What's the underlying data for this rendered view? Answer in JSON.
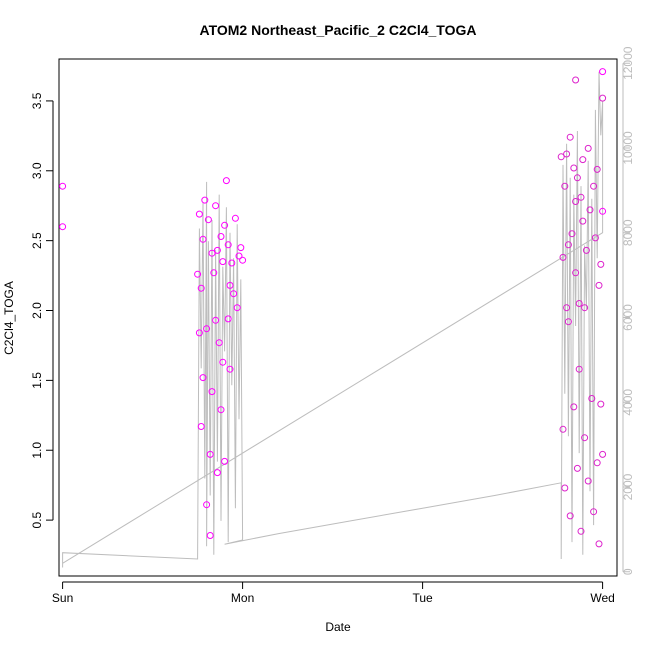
{
  "chart_data": {
    "type": "scatter",
    "title": "ATOM2 Northeast_Pacific_2 C2Cl4_TOGA",
    "xlabel": "Date",
    "ylabel": "C2Cl4_TOGA",
    "xlim": [
      -0.02,
      3.08
    ],
    "ylim": [
      0.1,
      3.8
    ],
    "y2lim": [
      -100,
      12100
    ],
    "x_ticks": [
      {
        "value": 0,
        "label": "Sun"
      },
      {
        "value": 1,
        "label": "Mon"
      },
      {
        "value": 2,
        "label": "Tue"
      },
      {
        "value": 3,
        "label": "Wed"
      }
    ],
    "y_ticks": [
      {
        "value": 0.5,
        "label": "0.5"
      },
      {
        "value": 1.0,
        "label": "1.0"
      },
      {
        "value": 1.5,
        "label": "1.5"
      },
      {
        "value": 2.0,
        "label": "2.0"
      },
      {
        "value": 2.5,
        "label": "2.5"
      },
      {
        "value": 3.0,
        "label": "3.0"
      },
      {
        "value": 3.5,
        "label": "3.5"
      }
    ],
    "y2_ticks": [
      {
        "value": 0,
        "label": "0"
      },
      {
        "value": 2000,
        "label": "2000"
      },
      {
        "value": 4000,
        "label": "4000"
      },
      {
        "value": 6000,
        "label": "6000"
      },
      {
        "value": 8000,
        "label": "8000"
      },
      {
        "value": 10000,
        "label": "10000"
      },
      {
        "value": 12000,
        "label": "12000"
      }
    ],
    "colors": {
      "points_a": "#ff00ff",
      "points_b": "#dd22cc",
      "line": "#bdbdbd",
      "axis": "#000000",
      "axis2": "#bdbdbd"
    },
    "series": [
      {
        "kind": "points",
        "x": [
          0.0,
          0.0,
          0.75,
          0.76,
          0.76,
          0.77,
          0.77,
          0.78,
          0.78,
          0.79,
          0.8,
          0.8,
          0.81,
          0.82,
          0.82,
          0.83,
          0.83,
          0.84,
          0.85,
          0.85,
          0.86,
          0.86,
          0.87,
          0.88,
          0.88,
          0.89,
          0.89,
          0.9,
          0.9,
          0.91,
          0.92,
          0.92,
          0.93,
          0.93,
          0.94,
          0.95,
          0.96,
          0.97,
          0.98,
          0.99,
          1.0,
          3.0,
          3.0
        ],
        "y": [
          2.89,
          2.6,
          2.26,
          1.84,
          2.69,
          2.16,
          1.17,
          2.51,
          1.52,
          2.79,
          1.87,
          0.61,
          2.65,
          0.97,
          0.39,
          2.41,
          1.42,
          2.27,
          2.75,
          1.93,
          0.84,
          2.43,
          1.77,
          2.53,
          1.29,
          1.63,
          2.35,
          0.92,
          2.61,
          2.93,
          2.47,
          1.94,
          2.18,
          1.58,
          2.34,
          2.12,
          2.66,
          2.02,
          2.39,
          2.45,
          2.36,
          3.71,
          2.71
        ],
        "color_key": "points_a"
      },
      {
        "kind": "points",
        "x": [
          2.77,
          2.78,
          2.78,
          2.79,
          2.79,
          2.8,
          2.81,
          2.81,
          2.82,
          2.82,
          2.83,
          2.84,
          2.84,
          2.85,
          2.85,
          2.86,
          2.86,
          2.87,
          2.88,
          2.88,
          2.89,
          2.89,
          2.9,
          2.9,
          2.91,
          2.92,
          2.92,
          2.93,
          2.94,
          2.95,
          2.95,
          2.96,
          2.97,
          2.97,
          2.98,
          2.98,
          2.99,
          2.99,
          3.0,
          3.0,
          2.8,
          2.85,
          2.87
        ],
        "y": [
          3.1,
          2.38,
          1.15,
          2.89,
          0.73,
          3.12,
          2.47,
          1.92,
          3.24,
          0.53,
          2.55,
          3.02,
          1.31,
          3.65,
          2.27,
          0.87,
          2.95,
          1.58,
          2.81,
          0.42,
          2.64,
          3.08,
          1.09,
          2.02,
          2.43,
          3.16,
          0.78,
          2.72,
          1.37,
          2.89,
          0.56,
          2.52,
          3.01,
          0.91,
          2.18,
          0.33,
          1.33,
          2.33,
          0.97,
          3.52,
          2.02,
          2.78,
          2.05
        ],
        "color_key": "points_b"
      },
      {
        "kind": "line",
        "axis": "y2",
        "x": [
          0.0,
          0.0,
          0.75,
          0.76,
          0.77,
          0.78,
          0.79,
          0.8,
          0.8,
          0.81,
          0.82,
          0.83,
          0.84,
          0.85,
          0.86,
          0.87,
          0.88,
          0.89,
          0.9,
          0.91,
          0.92,
          0.93,
          0.94,
          0.95,
          0.96,
          0.97,
          0.98,
          0.99,
          1.0,
          0.9,
          1.2,
          1.6,
          2.0,
          2.4,
          2.77,
          2.77,
          2.78,
          2.79,
          2.8,
          2.81,
          2.82,
          2.83,
          2.84,
          2.85,
          2.86,
          2.87,
          2.88,
          2.89,
          2.9,
          2.91,
          2.92,
          2.93,
          2.94,
          2.95,
          2.96,
          2.97,
          2.98,
          2.99,
          3.0,
          3.0,
          0.0
        ],
        "y": [
          100,
          450,
          300,
          8100,
          4800,
          8700,
          2200,
          9200,
          600,
          7800,
          1800,
          8300,
          400,
          7600,
          2600,
          8900,
          1200,
          7200,
          5200,
          8600,
          700,
          8000,
          4400,
          7400,
          1500,
          8200,
          3600,
          6900,
          750,
          650,
          900,
          1200,
          1500,
          1800,
          2100,
          300,
          9600,
          4200,
          10100,
          3200,
          9300,
          700,
          8900,
          5800,
          10400,
          2800,
          9100,
          400,
          7700,
          6200,
          9700,
          1900,
          8800,
          1100,
          10900,
          7400,
          11800,
          10300,
          11100,
          8000,
          200
        ],
        "color_key": "line"
      }
    ]
  }
}
